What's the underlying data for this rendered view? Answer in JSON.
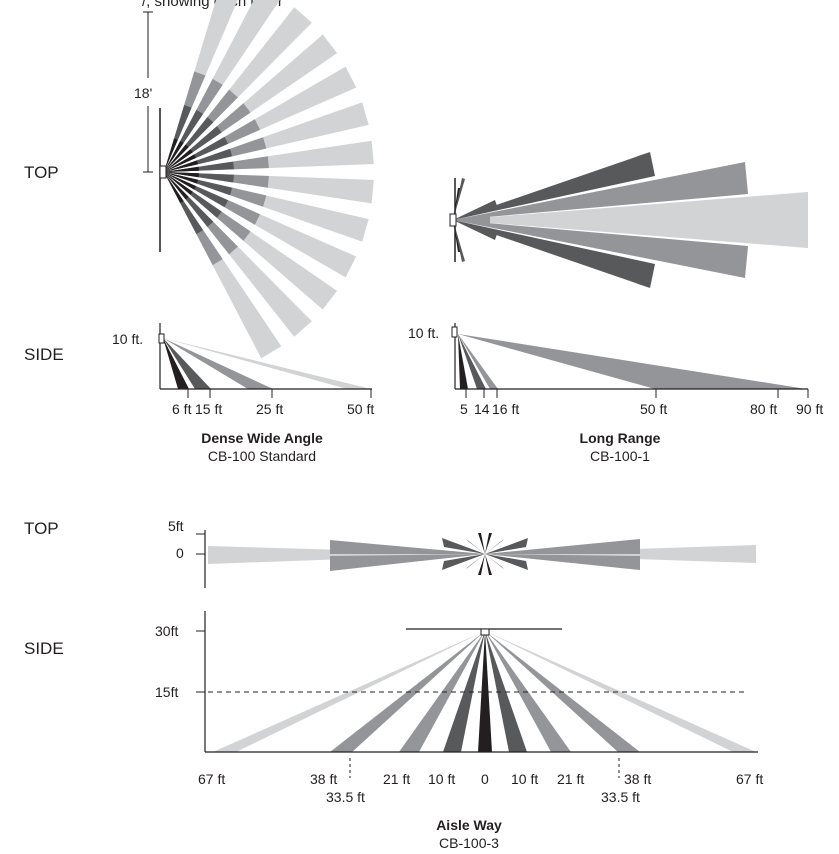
{
  "top_caption": "/, showing each layer",
  "colors": {
    "black": "#231f20",
    "dark": "#58595b",
    "mid": "#939598",
    "light": "#d1d3d4"
  },
  "row_labels": {
    "top1": "TOP",
    "side1": "SIDE",
    "top2": "TOP",
    "side2": "SIDE"
  },
  "dense": {
    "height_label": "18'",
    "side_height": "10 ft.",
    "distances": [
      "6 ft",
      "15 ft",
      "25 ft",
      "50 ft"
    ],
    "title": "Dense Wide Angle",
    "model": "CB-100 Standard"
  },
  "long_range": {
    "side_height": "10 ft.",
    "distances": [
      "5",
      "14",
      "16 ft",
      "50 ft",
      "80 ft",
      "90 ft"
    ],
    "title": "Long Range",
    "model": "CB-100-1"
  },
  "aisle": {
    "top_ticks": [
      "5ft",
      "0"
    ],
    "side_ticks": [
      "30ft",
      "15ft"
    ],
    "distances_upper": [
      "67 ft",
      "38 ft",
      "21 ft",
      "10 ft",
      "0",
      "10 ft",
      "21 ft",
      "38 ft",
      "67 ft"
    ],
    "distances_lower": [
      "33.5 ft",
      "33.5 ft"
    ],
    "title": "Aisle Way",
    "model": "CB-100-3"
  }
}
